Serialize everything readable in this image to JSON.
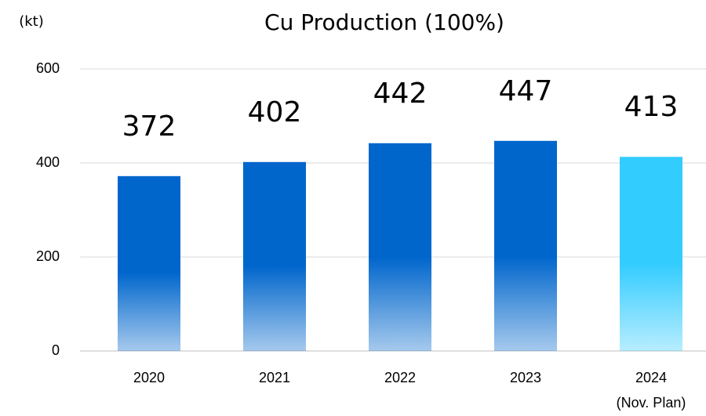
{
  "chart_data": {
    "type": "bar",
    "title": "Cu Production (100%)",
    "y_label": "(kt)",
    "categories": [
      "2020",
      "2021",
      "2022",
      "2023",
      "2024"
    ],
    "annotations": [
      {
        "text": "(Nov. Plan)",
        "category": 4
      }
    ],
    "values": [
      372,
      402,
      442,
      447,
      413
    ],
    "colors": [
      "#0066cc",
      "#0066cc",
      "#0066cc",
      "#0066cc",
      "#33ccff"
    ],
    "ylim": [
      0,
      600
    ],
    "yticks": [
      0,
      200,
      400,
      600
    ],
    "grid": true
  }
}
